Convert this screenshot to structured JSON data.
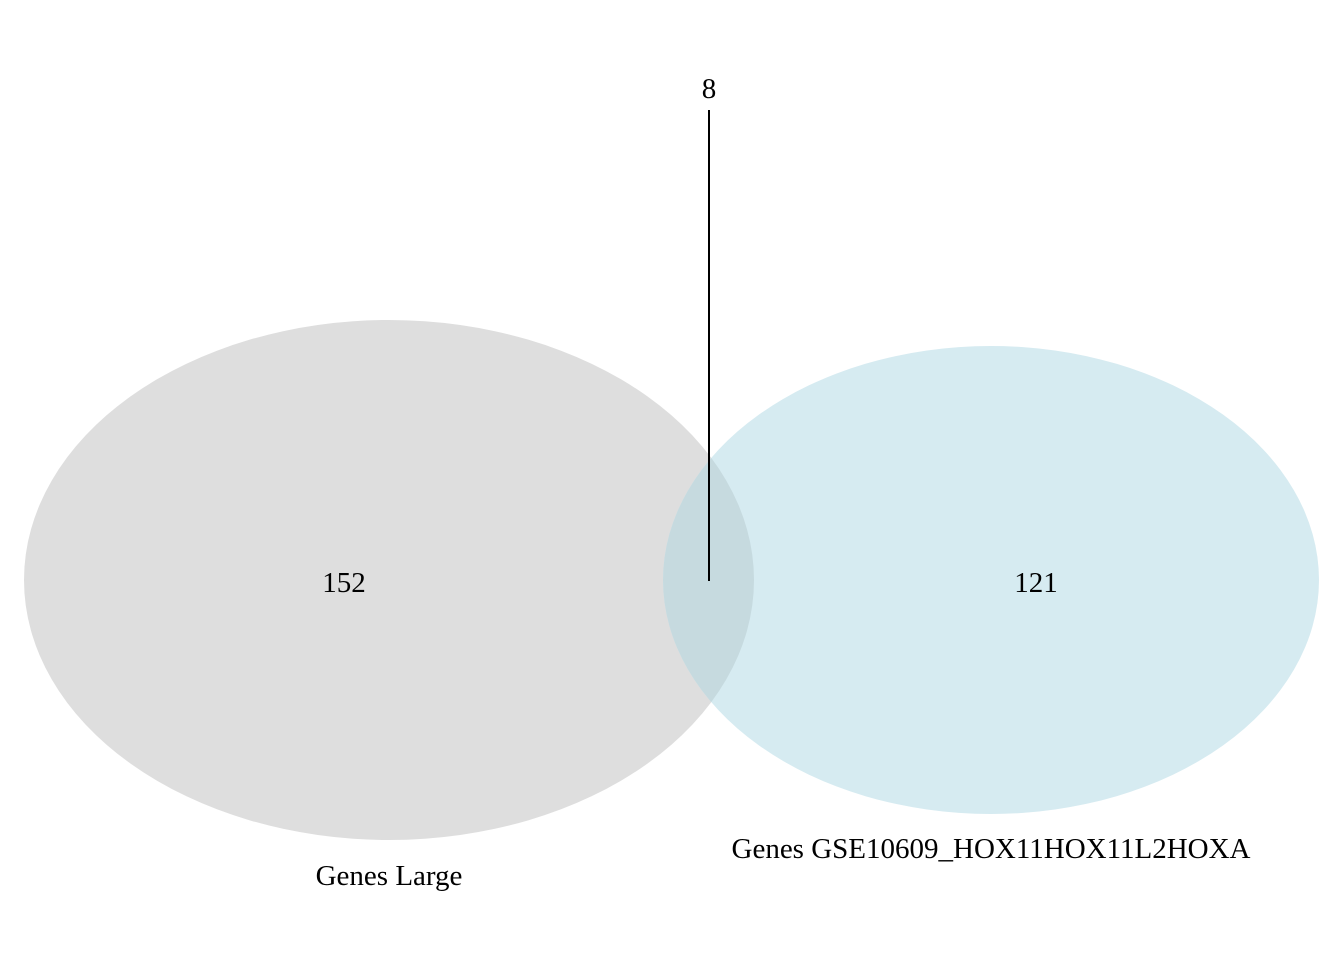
{
  "venn": {
    "sets": [
      {
        "name": "Genes Large",
        "unique_count": "152",
        "color": "#dedede"
      },
      {
        "name": "Genes GSE10609_HOX11HOX11L2HOXA",
        "unique_count": "121",
        "color": "#d6ebf1"
      }
    ],
    "intersection": {
      "count": "8",
      "color": "#c6dadf"
    }
  }
}
